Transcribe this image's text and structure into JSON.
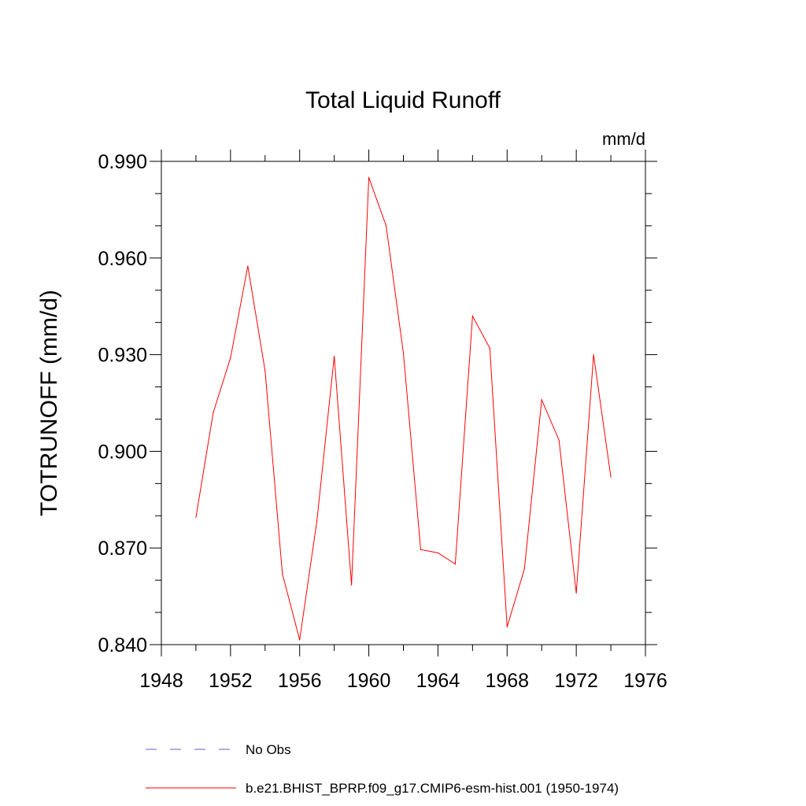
{
  "chart_data": {
    "type": "line",
    "title": "Total Liquid Runoff",
    "units_label": "mm/d",
    "ylabel": "TOTRUNOFF  (mm/d)",
    "xlabel": "",
    "xlim": [
      1948,
      1976
    ],
    "ylim": [
      0.84,
      0.99
    ],
    "x_ticks": [
      1948,
      1952,
      1956,
      1960,
      1964,
      1968,
      1972,
      1976
    ],
    "x_tick_labels": [
      "1948",
      "1952",
      "1956",
      "1960",
      "1964",
      "1968",
      "1972",
      "1976"
    ],
    "y_ticks": [
      0.84,
      0.87,
      0.9,
      0.93,
      0.96,
      0.99
    ],
    "y_tick_labels": [
      "0.840",
      "0.870",
      "0.900",
      "0.930",
      "0.960",
      "0.990"
    ],
    "y_minor_step": 0.01,
    "x_minor_step": 2,
    "grid": false,
    "legend_position": "bottom",
    "series": [
      {
        "name": "b.e21.BHIST_BPRP.f09_g17.CMIP6-esm-hist.001 (1950-1974)",
        "color": "#ff0000",
        "style": "solid",
        "x": [
          1950,
          1951,
          1952,
          1953,
          1954,
          1955,
          1956,
          1957,
          1958,
          1959,
          1960,
          1961,
          1962,
          1963,
          1964,
          1965,
          1966,
          1967,
          1968,
          1969,
          1970,
          1971,
          1972,
          1973,
          1974
        ],
        "y": [
          0.8795,
          0.912,
          0.929,
          0.9575,
          0.925,
          0.862,
          0.8415,
          0.8785,
          0.9295,
          0.8585,
          0.985,
          0.97,
          0.9305,
          0.8695,
          0.8685,
          0.865,
          0.942,
          0.932,
          0.8455,
          0.8635,
          0.916,
          0.9035,
          0.856,
          0.93,
          0.892
        ]
      }
    ],
    "legend": [
      {
        "label": "No Obs",
        "color": "#6a5acd",
        "style": "dashed"
      },
      {
        "label": "b.e21.BHIST_BPRP.f09_g17.CMIP6-esm-hist.001 (1950-1974)",
        "color": "#ff0000",
        "style": "solid"
      }
    ]
  }
}
